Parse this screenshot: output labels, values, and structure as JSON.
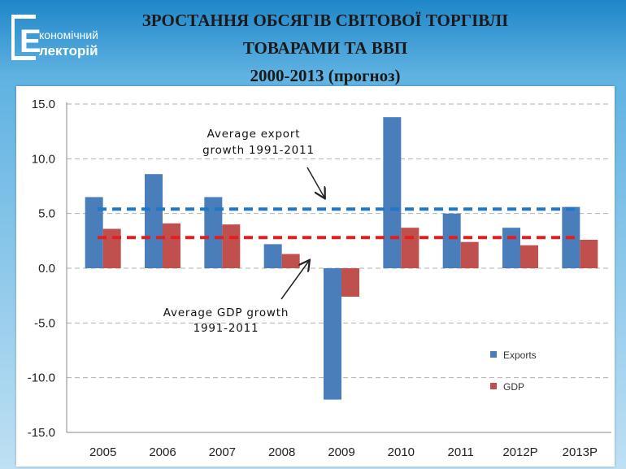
{
  "header": {
    "title_lines": [
      "ЗРОСТАННЯ ОБСЯГІВ СВІТОВОЇ ТОРГІВЛІ",
      "ТОВАРАМИ ТА ВВП",
      "2000-2013 (прогноз)"
    ],
    "logo": {
      "line1": "кономічний",
      "line2": "лекторій",
      "letter": "Е"
    }
  },
  "colors": {
    "exports": "#4a7ebb",
    "gdp": "#c0504d",
    "export_avg_line": "#1f77c8",
    "gdp_avg_line": "#e02020",
    "grid": "#b0b0b0"
  },
  "chart_data": {
    "type": "bar",
    "categories": [
      "2005",
      "2006",
      "2007",
      "2008",
      "2009",
      "2010",
      "2011",
      "2012P",
      "2013P"
    ],
    "series": [
      {
        "name": "Exports",
        "values": [
          6.5,
          8.6,
          6.5,
          2.2,
          -12.0,
          13.8,
          5.0,
          3.7,
          5.6
        ]
      },
      {
        "name": "GDP",
        "values": [
          3.6,
          4.1,
          4.0,
          1.3,
          -2.6,
          3.7,
          2.4,
          2.1,
          2.6
        ]
      }
    ],
    "reference_lines": [
      {
        "label_lines": [
          "Average export",
          "growth 1991-2011"
        ],
        "value": 5.4
      },
      {
        "label_lines": [
          "Average GDP growth",
          "1991-2011"
        ],
        "value": 2.8
      }
    ],
    "ylim": [
      -15,
      15
    ],
    "yticks": [
      "15.0",
      "10.0",
      "5.0",
      "0.0",
      "-5.0",
      "-10.0",
      "-15.0"
    ],
    "ytick_values": [
      15,
      10,
      5,
      0,
      -5,
      -10,
      -15
    ],
    "grid": true,
    "legend_position": "bottom-right"
  }
}
